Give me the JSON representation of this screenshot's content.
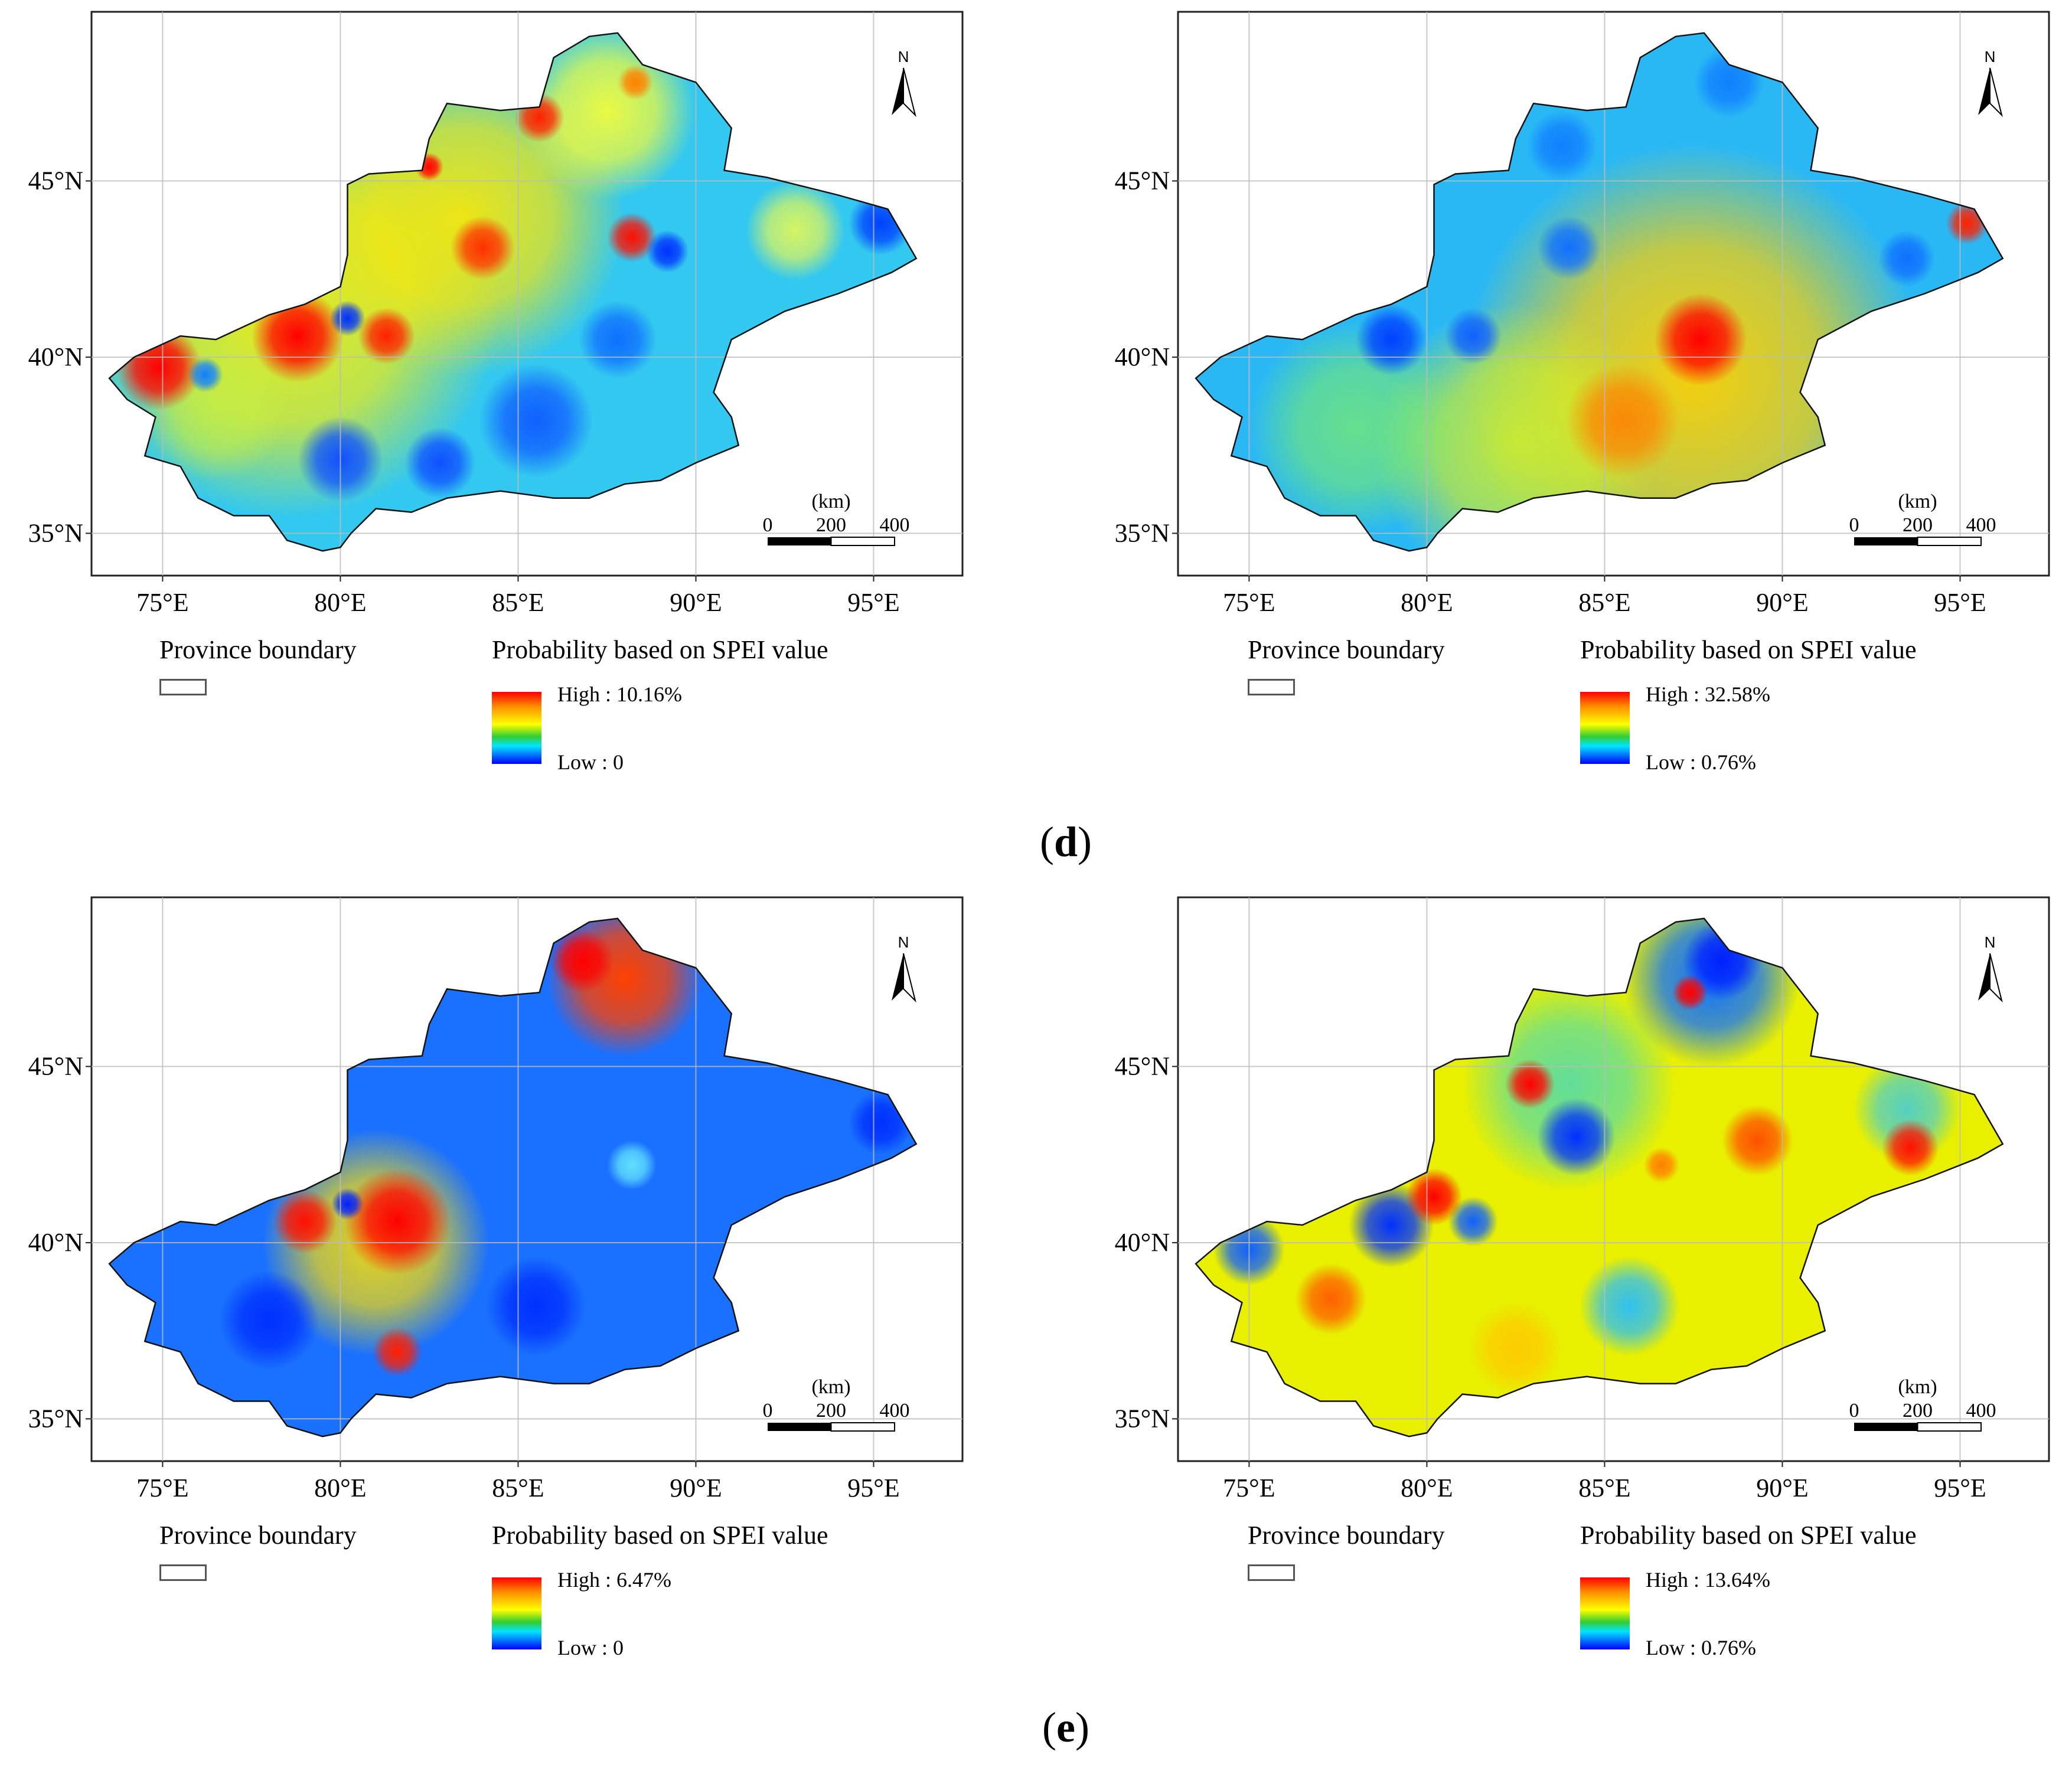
{
  "panel_labels": {
    "upper": "d",
    "lower": "e"
  },
  "axes": {
    "lon_ticks": [
      "75°E",
      "80°E",
      "85°E",
      "90°E",
      "95°E"
    ],
    "lat_ticks": [
      "45°N",
      "40°N",
      "35°N"
    ]
  },
  "north_arrow": "N",
  "scale_bar": {
    "unit": "(km)",
    "labels": [
      "0",
      "200",
      "400"
    ]
  },
  "legend": {
    "boundary_title": "Province boundary",
    "prob_title": "Probability based on SPEI value"
  },
  "maps": [
    {
      "id": "top-left",
      "high": "High : 10.16%",
      "low": "Low : 0",
      "base": "#33c8f0",
      "blobs": [
        {
          "lon": 78.5,
          "lat": 41.5,
          "r": 6,
          "color": "#fff000",
          "o": 0.9
        },
        {
          "lon": 83.5,
          "lat": 44.0,
          "r": 4.5,
          "color": "#ffe800",
          "o": 0.9
        },
        {
          "lon": 87.5,
          "lat": 47.0,
          "r": 2.5,
          "color": "#ffff30",
          "o": 0.9
        },
        {
          "lon": 92.8,
          "lat": 43.6,
          "r": 1.4,
          "color": "#ffff40",
          "o": 0.8
        },
        {
          "lon": 76.5,
          "lat": 38.5,
          "r": 2.0,
          "color": "#c8f040",
          "o": 0.7
        },
        {
          "lon": 74.9,
          "lat": 39.7,
          "r": 1.2,
          "color": "#ff0000",
          "o": 1
        },
        {
          "lon": 78.8,
          "lat": 40.6,
          "r": 1.3,
          "color": "#ff0000",
          "o": 1
        },
        {
          "lon": 81.3,
          "lat": 40.6,
          "r": 0.8,
          "color": "#ff2000",
          "o": 1
        },
        {
          "lon": 84.0,
          "lat": 43.1,
          "r": 0.9,
          "color": "#ff3000",
          "o": 1
        },
        {
          "lon": 85.6,
          "lat": 46.8,
          "r": 0.7,
          "color": "#ff2000",
          "o": 1
        },
        {
          "lon": 88.2,
          "lat": 43.4,
          "r": 0.7,
          "color": "#ff1000",
          "o": 1
        },
        {
          "lon": 82.5,
          "lat": 45.4,
          "r": 0.4,
          "color": "#ff0000",
          "o": 1
        },
        {
          "lon": 88.3,
          "lat": 47.8,
          "r": 0.5,
          "color": "#ff8000",
          "o": 1
        },
        {
          "lon": 85.5,
          "lat": 38.2,
          "r": 1.6,
          "color": "#1060ff",
          "o": 1
        },
        {
          "lon": 80.0,
          "lat": 37.1,
          "r": 1.2,
          "color": "#1050ff",
          "o": 1
        },
        {
          "lon": 82.8,
          "lat": 37.0,
          "r": 1.0,
          "color": "#1050ff",
          "o": 1
        },
        {
          "lon": 87.8,
          "lat": 40.5,
          "r": 1.1,
          "color": "#1070ff",
          "o": 1
        },
        {
          "lon": 89.2,
          "lat": 43.0,
          "r": 0.6,
          "color": "#0030ff",
          "o": 1
        },
        {
          "lon": 95.2,
          "lat": 43.8,
          "r": 0.9,
          "color": "#0040ff",
          "o": 1
        },
        {
          "lon": 80.2,
          "lat": 41.1,
          "r": 0.5,
          "color": "#0030ff",
          "o": 1
        },
        {
          "lon": 76.2,
          "lat": 39.5,
          "r": 0.5,
          "color": "#1080ff",
          "o": 1
        }
      ]
    },
    {
      "id": "top-right",
      "high": "High : 32.58%",
      "low": "Low : 0.76%",
      "base": "#2ab8f5",
      "blobs": [
        {
          "lon": 87.5,
          "lat": 39.5,
          "r": 6.5,
          "color": "#ffd000",
          "o": 0.95
        },
        {
          "lon": 82.5,
          "lat": 37.5,
          "r": 4,
          "color": "#d8f020",
          "o": 0.85
        },
        {
          "lon": 78.0,
          "lat": 38.0,
          "r": 3,
          "color": "#80f060",
          "o": 0.7
        },
        {
          "lon": 87.7,
          "lat": 40.5,
          "r": 1.3,
          "color": "#ff0000",
          "o": 1
        },
        {
          "lon": 85.5,
          "lat": 38.2,
          "r": 1.6,
          "color": "#ff8000",
          "o": 0.9
        },
        {
          "lon": 95.2,
          "lat": 43.8,
          "r": 0.6,
          "color": "#ff2000",
          "o": 1
        },
        {
          "lon": 79.0,
          "lat": 40.5,
          "r": 1.0,
          "color": "#0040ff",
          "o": 1
        },
        {
          "lon": 81.3,
          "lat": 40.6,
          "r": 0.8,
          "color": "#1060ff",
          "o": 1
        },
        {
          "lon": 84.0,
          "lat": 43.1,
          "r": 0.9,
          "color": "#1070ff",
          "o": 1
        },
        {
          "lon": 93.5,
          "lat": 42.8,
          "r": 0.8,
          "color": "#1070ff",
          "o": 1
        },
        {
          "lon": 83.8,
          "lat": 46.0,
          "r": 1.0,
          "color": "#1080ff",
          "o": 1
        },
        {
          "lon": 88.5,
          "lat": 47.8,
          "r": 1.0,
          "color": "#1080ff",
          "o": 1
        }
      ]
    },
    {
      "id": "bottom-left",
      "high": "High : 6.47%",
      "low": "Low : 0",
      "base": "#1a70ff",
      "blobs": [
        {
          "lon": 88.0,
          "lat": 47.5,
          "r": 2.2,
          "color": "#ff4000",
          "o": 1
        },
        {
          "lon": 86.8,
          "lat": 48.0,
          "r": 0.9,
          "color": "#ff0000",
          "o": 1
        },
        {
          "lon": 81.0,
          "lat": 40.0,
          "r": 3.2,
          "color": "#ffe000",
          "o": 0.9
        },
        {
          "lon": 81.6,
          "lat": 40.6,
          "r": 1.5,
          "color": "#ff0000",
          "o": 1
        },
        {
          "lon": 79.0,
          "lat": 40.6,
          "r": 0.9,
          "color": "#ff1000",
          "o": 1
        },
        {
          "lon": 81.6,
          "lat": 36.9,
          "r": 0.7,
          "color": "#ff2000",
          "o": 1
        },
        {
          "lon": 80.2,
          "lat": 41.1,
          "r": 0.45,
          "color": "#0020ff",
          "o": 1
        },
        {
          "lon": 88.2,
          "lat": 42.2,
          "r": 0.7,
          "color": "#60e0ff",
          "o": 1
        },
        {
          "lon": 85.5,
          "lat": 38.2,
          "r": 1.4,
          "color": "#0030ff",
          "o": 1
        },
        {
          "lon": 78.0,
          "lat": 37.8,
          "r": 1.4,
          "color": "#0030ff",
          "o": 1
        },
        {
          "lon": 95.2,
          "lat": 43.4,
          "r": 0.9,
          "color": "#0030ff",
          "o": 1
        }
      ]
    },
    {
      "id": "bottom-right",
      "high": "High : 13.64%",
      "low": "Low : 0.76%",
      "base": "#e8f000",
      "blobs": [
        {
          "lon": 88.0,
          "lat": 47.5,
          "r": 2.5,
          "color": "#1070ff",
          "o": 1
        },
        {
          "lon": 84.0,
          "lat": 44.5,
          "r": 3.0,
          "color": "#40d8c0",
          "o": 0.8
        },
        {
          "lon": 93.5,
          "lat": 43.8,
          "r": 1.5,
          "color": "#30c8f0",
          "o": 0.8
        },
        {
          "lon": 85.7,
          "lat": 38.2,
          "r": 1.4,
          "color": "#30c0f0",
          "o": 1
        },
        {
          "lon": 75.0,
          "lat": 39.8,
          "r": 1.0,
          "color": "#1060ff",
          "o": 1
        },
        {
          "lon": 79.0,
          "lat": 40.5,
          "r": 1.2,
          "color": "#0030ff",
          "o": 1
        },
        {
          "lon": 81.3,
          "lat": 40.6,
          "r": 0.7,
          "color": "#1060ff",
          "o": 1
        },
        {
          "lon": 84.2,
          "lat": 43.0,
          "r": 1.1,
          "color": "#0030ff",
          "o": 1
        },
        {
          "lon": 88.3,
          "lat": 48.0,
          "r": 1.1,
          "color": "#0020ff",
          "o": 1
        },
        {
          "lon": 80.2,
          "lat": 41.3,
          "r": 0.8,
          "color": "#ff0000",
          "o": 1
        },
        {
          "lon": 82.9,
          "lat": 44.5,
          "r": 0.7,
          "color": "#ff0000",
          "o": 1
        },
        {
          "lon": 87.4,
          "lat": 47.1,
          "r": 0.5,
          "color": "#ff0000",
          "o": 1
        },
        {
          "lon": 93.6,
          "lat": 42.7,
          "r": 0.8,
          "color": "#ff1000",
          "o": 1
        },
        {
          "lon": 89.3,
          "lat": 42.9,
          "r": 1.0,
          "color": "#ff5000",
          "o": 1
        },
        {
          "lon": 77.3,
          "lat": 38.4,
          "r": 1.0,
          "color": "#ff6000",
          "o": 1
        },
        {
          "lon": 86.6,
          "lat": 42.2,
          "r": 0.5,
          "color": "#ff8000",
          "o": 1
        },
        {
          "lon": 82.5,
          "lat": 37.0,
          "r": 1.3,
          "color": "#ffc800",
          "o": 0.9
        }
      ]
    }
  ]
}
